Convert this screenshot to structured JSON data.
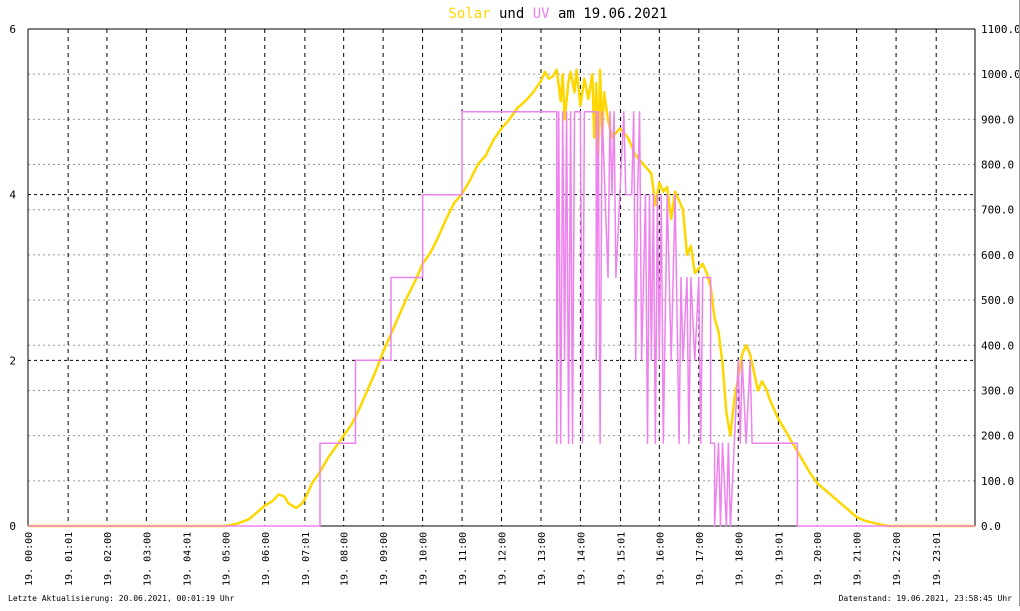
{
  "title": {
    "part_solar": "Solar",
    "part_und": " und ",
    "part_uv": "UV",
    "part_rest": " am 19.06.2021"
  },
  "colors": {
    "solar": "#ffd700",
    "uv": "#ee82ee",
    "grid": "#000000",
    "background": "#ffffff"
  },
  "footer": {
    "left": "Letzte Aktualisierung: 20.06.2021, 00:01:19 Uhr",
    "right": "Datenstand: 19.06.2021, 23:58:45 Uhr"
  },
  "chart_data": {
    "type": "line",
    "title": "Solar und UV am 19.06.2021",
    "x_unit": "hour of day",
    "xlim": [
      0,
      24
    ],
    "x_tick_labels": [
      "19. 00:00",
      "19. 01:01",
      "19. 02:00",
      "19. 03:00",
      "19. 04:01",
      "19. 05:00",
      "19. 06:00",
      "19. 07:01",
      "19. 08:00",
      "19. 09:00",
      "19. 10:00",
      "19. 11:00",
      "19. 12:00",
      "19. 13:00",
      "19. 14:00",
      "19. 15:01",
      "19. 16:00",
      "19. 17:00",
      "19. 18:00",
      "19. 19:01",
      "19. 20:00",
      "19. 21:00",
      "19. 22:00",
      "19. 23:01"
    ],
    "x_tick_positions": [
      0,
      1.017,
      2,
      3,
      4.017,
      5,
      6,
      7.017,
      8,
      9,
      10,
      11,
      12,
      13,
      14,
      15.017,
      16,
      17,
      18,
      19.017,
      20,
      21,
      22,
      23.017
    ],
    "y_left": {
      "ylim": [
        0,
        6
      ],
      "ticks": [
        "0",
        "2",
        "4",
        "6"
      ],
      "tick_values": [
        0,
        2,
        4,
        6
      ]
    },
    "y_right": {
      "ylim": [
        0,
        1100
      ],
      "ticks": [
        "0.0",
        "100.0",
        "200.0",
        "300.0",
        "400.0",
        "500.0",
        "600.0",
        "700.0",
        "800.0",
        "900.0",
        "1000.0",
        "1100.0"
      ],
      "tick_values": [
        0,
        100,
        200,
        300,
        400,
        500,
        600,
        700,
        800,
        900,
        1000,
        1100
      ]
    },
    "grid": true,
    "series": [
      {
        "name": "Solar",
        "axis": "right",
        "color": "#ffd700",
        "points": [
          [
            0,
            0
          ],
          [
            5.0,
            0
          ],
          [
            5.3,
            5
          ],
          [
            5.6,
            15
          ],
          [
            5.8,
            30
          ],
          [
            6.0,
            45
          ],
          [
            6.2,
            55
          ],
          [
            6.35,
            70
          ],
          [
            6.5,
            65
          ],
          [
            6.6,
            50
          ],
          [
            6.8,
            40
          ],
          [
            6.95,
            50
          ],
          [
            7.05,
            65
          ],
          [
            7.2,
            95
          ],
          [
            7.4,
            120
          ],
          [
            7.6,
            150
          ],
          [
            7.8,
            175
          ],
          [
            8.0,
            200
          ],
          [
            8.2,
            225
          ],
          [
            8.4,
            260
          ],
          [
            8.6,
            300
          ],
          [
            8.8,
            340
          ],
          [
            9.0,
            385
          ],
          [
            9.2,
            425
          ],
          [
            9.4,
            465
          ],
          [
            9.6,
            505
          ],
          [
            9.8,
            540
          ],
          [
            10.0,
            580
          ],
          [
            10.2,
            605
          ],
          [
            10.4,
            640
          ],
          [
            10.6,
            680
          ],
          [
            10.8,
            715
          ],
          [
            11.0,
            735
          ],
          [
            11.2,
            765
          ],
          [
            11.4,
            800
          ],
          [
            11.6,
            820
          ],
          [
            11.8,
            855
          ],
          [
            12.0,
            880
          ],
          [
            12.2,
            900
          ],
          [
            12.4,
            925
          ],
          [
            12.6,
            940
          ],
          [
            12.8,
            960
          ],
          [
            13.0,
            985
          ],
          [
            13.1,
            1005
          ],
          [
            13.2,
            990
          ],
          [
            13.3,
            995
          ],
          [
            13.4,
            1010
          ],
          [
            13.5,
            940
          ],
          [
            13.55,
            1000
          ],
          [
            13.6,
            900
          ],
          [
            13.7,
            985
          ],
          [
            13.75,
            1005
          ],
          [
            13.85,
            960
          ],
          [
            13.9,
            1010
          ],
          [
            14.0,
            930
          ],
          [
            14.1,
            990
          ],
          [
            14.2,
            945
          ],
          [
            14.3,
            1000
          ],
          [
            14.35,
            860
          ],
          [
            14.4,
            980
          ],
          [
            14.45,
            820
          ],
          [
            14.5,
            1010
          ],
          [
            14.55,
            860
          ],
          [
            14.6,
            960
          ],
          [
            14.7,
            900
          ],
          [
            14.8,
            860
          ],
          [
            15.0,
            880
          ],
          [
            15.2,
            860
          ],
          [
            15.4,
            820
          ],
          [
            15.6,
            800
          ],
          [
            15.8,
            780
          ],
          [
            15.9,
            710
          ],
          [
            16.0,
            760
          ],
          [
            16.1,
            740
          ],
          [
            16.2,
            750
          ],
          [
            16.3,
            680
          ],
          [
            16.4,
            740
          ],
          [
            16.5,
            720
          ],
          [
            16.6,
            700
          ],
          [
            16.7,
            600
          ],
          [
            16.8,
            620
          ],
          [
            16.9,
            560
          ],
          [
            17.0,
            570
          ],
          [
            17.1,
            580
          ],
          [
            17.2,
            560
          ],
          [
            17.3,
            530
          ],
          [
            17.4,
            460
          ],
          [
            17.5,
            430
          ],
          [
            17.6,
            360
          ],
          [
            17.7,
            250
          ],
          [
            17.8,
            200
          ],
          [
            17.9,
            280
          ],
          [
            18.0,
            330
          ],
          [
            18.1,
            380
          ],
          [
            18.2,
            400
          ],
          [
            18.3,
            380
          ],
          [
            18.4,
            340
          ],
          [
            18.5,
            300
          ],
          [
            18.6,
            320
          ],
          [
            18.7,
            305
          ],
          [
            18.8,
            280
          ],
          [
            19.0,
            240
          ],
          [
            19.2,
            210
          ],
          [
            19.4,
            180
          ],
          [
            19.6,
            150
          ],
          [
            19.8,
            120
          ],
          [
            20.0,
            95
          ],
          [
            20.2,
            80
          ],
          [
            20.4,
            65
          ],
          [
            20.6,
            50
          ],
          [
            20.8,
            35
          ],
          [
            21.0,
            20
          ],
          [
            21.2,
            12
          ],
          [
            21.5,
            5
          ],
          [
            21.8,
            0
          ],
          [
            24.0,
            0
          ]
        ]
      },
      {
        "name": "UV",
        "axis": "left",
        "color": "#ee82ee",
        "points": [
          [
            0,
            0
          ],
          [
            7.4,
            0
          ],
          [
            7.4,
            1
          ],
          [
            8.3,
            1
          ],
          [
            8.3,
            2
          ],
          [
            9.2,
            2
          ],
          [
            9.2,
            3
          ],
          [
            10.0,
            3
          ],
          [
            10.0,
            4
          ],
          [
            11.0,
            4
          ],
          [
            11.0,
            5
          ],
          [
            13.4,
            5
          ],
          [
            13.4,
            1
          ],
          [
            13.45,
            5
          ],
          [
            13.5,
            1
          ],
          [
            13.55,
            5
          ],
          [
            13.6,
            2
          ],
          [
            13.65,
            5
          ],
          [
            13.7,
            1
          ],
          [
            13.75,
            5
          ],
          [
            13.8,
            1
          ],
          [
            13.85,
            5
          ],
          [
            14.0,
            5
          ],
          [
            14.05,
            1
          ],
          [
            14.1,
            5
          ],
          [
            14.4,
            5
          ],
          [
            14.4,
            2
          ],
          [
            14.45,
            5
          ],
          [
            14.5,
            1
          ],
          [
            14.55,
            5
          ],
          [
            14.7,
            3
          ],
          [
            14.75,
            5
          ],
          [
            14.8,
            4
          ],
          [
            14.85,
            5
          ],
          [
            14.9,
            3
          ],
          [
            15.0,
            4
          ],
          [
            15.1,
            5
          ],
          [
            15.15,
            4
          ],
          [
            15.3,
            4
          ],
          [
            15.35,
            5
          ],
          [
            15.4,
            2
          ],
          [
            15.45,
            4
          ],
          [
            15.5,
            5
          ],
          [
            15.55,
            2
          ],
          [
            15.6,
            3
          ],
          [
            15.65,
            4
          ],
          [
            15.7,
            1
          ],
          [
            15.75,
            4
          ],
          [
            15.8,
            2
          ],
          [
            15.85,
            4
          ],
          [
            15.9,
            1
          ],
          [
            15.95,
            4
          ],
          [
            16.0,
            2
          ],
          [
            16.05,
            4
          ],
          [
            16.1,
            1
          ],
          [
            16.2,
            4
          ],
          [
            16.3,
            2
          ],
          [
            16.4,
            4
          ],
          [
            16.5,
            1
          ],
          [
            16.55,
            3
          ],
          [
            16.6,
            2
          ],
          [
            16.7,
            3
          ],
          [
            16.75,
            1
          ],
          [
            16.8,
            3
          ],
          [
            16.9,
            2
          ],
          [
            17.0,
            3
          ],
          [
            17.05,
            1
          ],
          [
            17.1,
            3
          ],
          [
            17.3,
            3
          ],
          [
            17.3,
            1
          ],
          [
            17.4,
            1
          ],
          [
            17.4,
            0
          ],
          [
            17.5,
            1
          ],
          [
            17.55,
            0
          ],
          [
            17.6,
            1
          ],
          [
            17.7,
            0
          ],
          [
            17.75,
            1
          ],
          [
            17.8,
            0
          ],
          [
            17.9,
            1
          ],
          [
            18.0,
            2
          ],
          [
            18.05,
            1
          ],
          [
            18.1,
            2
          ],
          [
            18.2,
            1
          ],
          [
            18.3,
            2
          ],
          [
            18.35,
            1
          ],
          [
            19.5,
            1
          ],
          [
            19.5,
            0
          ],
          [
            24.0,
            0
          ]
        ]
      }
    ]
  }
}
